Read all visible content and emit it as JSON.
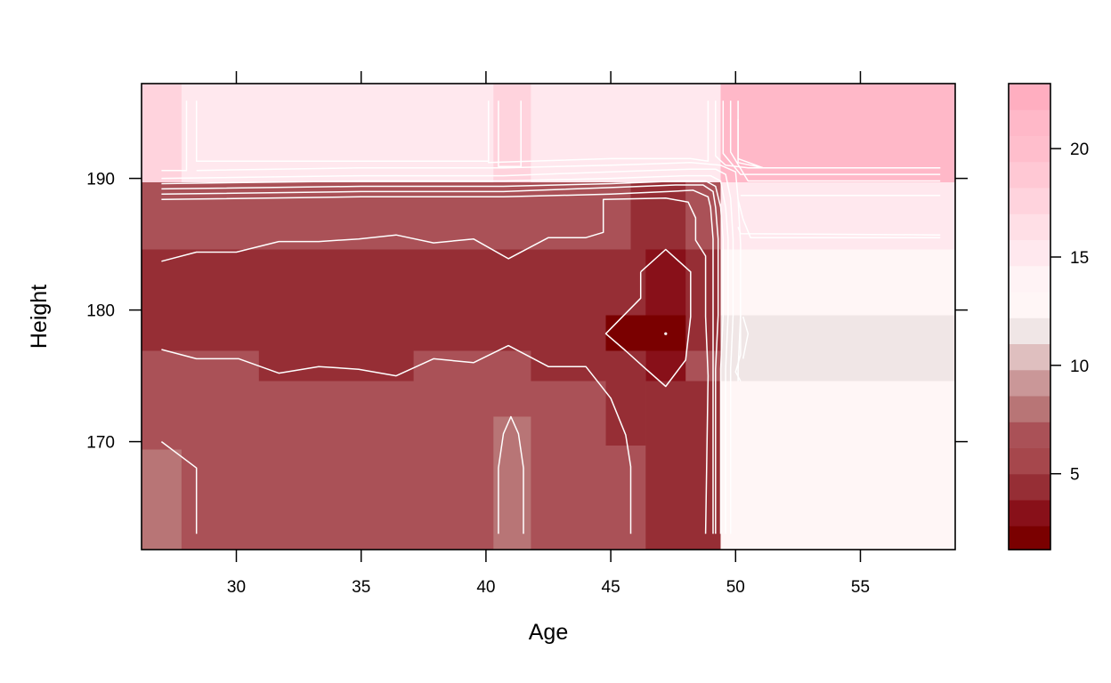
{
  "chart_data": {
    "type": "heatmap",
    "title": "",
    "xlabel": "Age",
    "ylabel": "Height",
    "xlim": [
      26.2,
      58.8
    ],
    "ylim": [
      161.8,
      197.2
    ],
    "x_ticks": [
      "30",
      "35",
      "40",
      "45",
      "50",
      "55"
    ],
    "x_tick_values": [
      30,
      35,
      40,
      45,
      50,
      55
    ],
    "y_ticks": [
      "170",
      "180",
      "190"
    ],
    "y_tick_values": [
      170,
      180,
      190
    ],
    "colorbar": {
      "range": [
        1.5,
        23
      ],
      "ticks": [
        "5",
        "10",
        "15",
        "20"
      ],
      "tick_values": [
        5,
        10,
        15,
        20
      ],
      "levels": [
        {
          "from": 1.5,
          "to": 2.6,
          "color": "#7A0000"
        },
        {
          "from": 2.6,
          "to": 3.8,
          "color": "#881019"
        },
        {
          "from": 3.8,
          "to": 5.0,
          "color": "#962E35"
        },
        {
          "from": 5.0,
          "to": 6.2,
          "color": "#A6474C"
        },
        {
          "from": 6.2,
          "to": 7.4,
          "color": "#AA5157"
        },
        {
          "from": 7.4,
          "to": 8.6,
          "color": "#B87576"
        },
        {
          "from": 8.6,
          "to": 9.8,
          "color": "#CA9798"
        },
        {
          "from": 9.8,
          "to": 11.0,
          "color": "#DFBFBF"
        },
        {
          "from": 11.0,
          "to": 12.2,
          "color": "#F0E6E6"
        },
        {
          "from": 12.2,
          "to": 13.4,
          "color": "#FFF6F6"
        },
        {
          "from": 13.4,
          "to": 14.6,
          "color": "#FFF3F5"
        },
        {
          "from": 14.6,
          "to": 15.8,
          "color": "#FFE8EE"
        },
        {
          "from": 15.8,
          "to": 17.0,
          "color": "#FFDFE6"
        },
        {
          "from": 17.0,
          "to": 18.2,
          "color": "#FFD3DD"
        },
        {
          "from": 18.2,
          "to": 19.4,
          "color": "#FFC8D4"
        },
        {
          "from": 19.4,
          "to": 20.6,
          "color": "#FFBECC"
        },
        {
          "from": 20.6,
          "to": 21.8,
          "color": "#FFB8C8"
        },
        {
          "from": 21.8,
          "to": 23.0,
          "color": "#FFAEC0"
        }
      ]
    },
    "cells": [
      {
        "x": [
          26.2,
          58.8
        ],
        "y": [
          161.8,
          197.2
        ],
        "value": 6.5
      },
      {
        "x": [
          26.2,
          58.8
        ],
        "y": [
          189.7,
          197.2
        ],
        "value": 15.8
      },
      {
        "x": [
          26.2,
          27.8
        ],
        "y": [
          189.7,
          197.2
        ],
        "value": 17.3
      },
      {
        "x": [
          40.3,
          41.8
        ],
        "y": [
          189.7,
          197.2
        ],
        "value": 17.3
      },
      {
        "x": [
          49.4,
          58.8
        ],
        "y": [
          189.7,
          197.2
        ],
        "value": 21.8
      },
      {
        "x": [
          26.2,
          58.8
        ],
        "y": [
          184.6,
          189.7
        ],
        "value": 6.5
      },
      {
        "x": [
          45.8,
          48.0
        ],
        "y": [
          184.6,
          189.7
        ],
        "value": 4.8
      },
      {
        "x": [
          48.0,
          49.4
        ],
        "y": [
          184.6,
          189.7
        ],
        "value": 6.5
      },
      {
        "x": [
          49.4,
          58.8
        ],
        "y": [
          184.6,
          189.7
        ],
        "value": 15.8
      },
      {
        "x": [
          26.2,
          49.4
        ],
        "y": [
          176.9,
          184.6
        ],
        "value": 4.8
      },
      {
        "x": [
          46.4,
          48.0
        ],
        "y": [
          174.6,
          184.6
        ],
        "value": 3.5
      },
      {
        "x": [
          44.8,
          48.0
        ],
        "y": [
          176.9,
          179.6
        ],
        "value": 2.4
      },
      {
        "x": [
          49.4,
          58.8
        ],
        "y": [
          179.6,
          184.6
        ],
        "value": 12.6
      },
      {
        "x": [
          49.4,
          58.8
        ],
        "y": [
          174.6,
          179.6
        ],
        "value": 11.4
      },
      {
        "x": [
          26.2,
          44.8
        ],
        "y": [
          161.8,
          176.9
        ],
        "value": 6.5
      },
      {
        "x": [
          30.9,
          37.1
        ],
        "y": [
          174.6,
          176.9
        ],
        "value": 4.8
      },
      {
        "x": [
          41.8,
          44.8
        ],
        "y": [
          174.6,
          176.9
        ],
        "value": 4.8
      },
      {
        "x": [
          44.8,
          46.4
        ],
        "y": [
          174.6,
          176.9
        ],
        "value": 4.8
      },
      {
        "x": [
          44.8,
          46.4
        ],
        "y": [
          169.7,
          174.6
        ],
        "value": 4.8
      },
      {
        "x": [
          44.8,
          46.4
        ],
        "y": [
          161.8,
          169.7
        ],
        "value": 6.5
      },
      {
        "x": [
          46.4,
          49.4
        ],
        "y": [
          161.8,
          174.6
        ],
        "value": 4.8
      },
      {
        "x": [
          49.4,
          58.8
        ],
        "y": [
          161.8,
          174.6
        ],
        "value": 12.6
      },
      {
        "x": [
          26.2,
          27.8
        ],
        "y": [
          161.8,
          169.4
        ],
        "value": 7.9
      },
      {
        "x": [
          40.3,
          41.8
        ],
        "y": [
          161.8,
          171.9
        ],
        "value": 7.9
      }
    ],
    "contours": [
      {
        "points": [
          [
            27.0,
            183.7
          ],
          [
            28.4,
            184.4
          ],
          [
            30.0,
            184.4
          ],
          [
            31.7,
            185.2
          ],
          [
            33.3,
            185.2
          ],
          [
            34.9,
            185.4
          ],
          [
            36.4,
            185.7
          ],
          [
            37.9,
            185.1
          ],
          [
            39.5,
            185.4
          ],
          [
            40.9,
            183.9
          ],
          [
            42.5,
            185.5
          ],
          [
            44.0,
            185.5
          ],
          [
            44.7,
            185.9
          ],
          [
            44.7,
            188.4
          ],
          [
            47.2,
            188.5
          ],
          [
            48.1,
            188.2
          ],
          [
            48.4,
            187.0
          ],
          [
            48.4,
            185.3
          ],
          [
            48.8,
            184.1
          ],
          [
            48.8,
            179.5
          ],
          [
            48.9,
            175.0
          ],
          [
            48.8,
            163.0
          ]
        ]
      },
      {
        "points": [
          [
            27.0,
            177.0
          ],
          [
            28.4,
            176.3
          ],
          [
            30.1,
            176.3
          ],
          [
            31.7,
            175.2
          ],
          [
            33.3,
            175.7
          ],
          [
            34.9,
            175.5
          ],
          [
            36.4,
            175.0
          ],
          [
            37.9,
            176.3
          ],
          [
            39.5,
            176.0
          ],
          [
            40.9,
            177.3
          ],
          [
            42.5,
            175.7
          ],
          [
            44.0,
            175.7
          ],
          [
            45.0,
            173.3
          ],
          [
            45.6,
            170.5
          ],
          [
            45.8,
            168.1
          ],
          [
            45.8,
            163.0
          ]
        ]
      },
      {
        "points": [
          [
            27.0,
            170.0
          ],
          [
            28.4,
            168.0
          ],
          [
            28.4,
            163.0
          ]
        ]
      },
      {
        "points": [
          [
            40.5,
            163.0
          ],
          [
            40.5,
            168.0
          ],
          [
            40.7,
            170.6
          ],
          [
            41.0,
            171.9
          ],
          [
            41.3,
            170.6
          ],
          [
            41.5,
            168.0
          ],
          [
            41.5,
            163.0
          ]
        ]
      },
      {
        "points": [
          [
            46.2,
            182.9
          ],
          [
            47.2,
            184.6
          ],
          [
            48.2,
            182.9
          ],
          [
            48.2,
            179.5
          ],
          [
            48.0,
            176.2
          ],
          [
            47.2,
            174.2
          ],
          [
            46.3,
            175.7
          ],
          [
            45.6,
            176.9
          ],
          [
            44.8,
            178.2
          ],
          [
            46.2,
            180.9
          ],
          [
            46.2,
            182.9
          ]
        ]
      },
      {
        "points": [
          [
            27.0,
            190.6
          ],
          [
            28.0,
            190.6
          ],
          [
            28.0,
            195.9
          ]
        ]
      },
      {
        "points": [
          [
            27.0,
            188.4
          ],
          [
            35.0,
            188.6
          ],
          [
            40.7,
            188.6
          ],
          [
            45.0,
            188.8
          ],
          [
            47.3,
            189.0
          ],
          [
            48.3,
            189.1
          ],
          [
            48.9,
            188.6
          ],
          [
            49.0,
            187.8
          ],
          [
            49.1,
            185.4
          ],
          [
            49.1,
            179.6
          ],
          [
            49.1,
            175.5
          ],
          [
            49.1,
            163.0
          ]
        ]
      },
      {
        "points": [
          [
            27.0,
            188.8
          ],
          [
            35.0,
            189.0
          ],
          [
            40.7,
            189.0
          ],
          [
            45.0,
            189.3
          ],
          [
            47.6,
            189.5
          ],
          [
            48.7,
            189.5
          ],
          [
            49.1,
            189.0
          ],
          [
            49.2,
            187.8
          ],
          [
            49.3,
            185.4
          ],
          [
            49.3,
            179.6
          ],
          [
            49.2,
            175.5
          ],
          [
            49.2,
            163.0
          ]
        ]
      },
      {
        "points": [
          [
            27.0,
            189.2
          ],
          [
            35.0,
            189.4
          ],
          [
            40.7,
            189.4
          ],
          [
            45.0,
            189.6
          ],
          [
            47.8,
            189.8
          ],
          [
            48.8,
            189.8
          ],
          [
            49.2,
            189.4
          ],
          [
            49.4,
            187.8
          ],
          [
            49.5,
            185.4
          ],
          [
            49.5,
            179.6
          ],
          [
            49.4,
            175.5
          ],
          [
            49.4,
            163.0
          ]
        ]
      },
      {
        "points": [
          [
            27.0,
            189.6
          ],
          [
            35.0,
            189.8
          ],
          [
            40.7,
            189.8
          ],
          [
            45.0,
            190.0
          ],
          [
            48.0,
            190.2
          ],
          [
            49.0,
            190.2
          ],
          [
            49.4,
            189.8
          ],
          [
            49.6,
            187.8
          ],
          [
            49.7,
            185.4
          ],
          [
            49.7,
            179.6
          ],
          [
            49.6,
            175.5
          ],
          [
            49.6,
            163.0
          ]
        ]
      },
      {
        "points": [
          [
            27.0,
            190.0
          ],
          [
            35.0,
            190.2
          ],
          [
            40.7,
            190.2
          ],
          [
            45.0,
            190.5
          ],
          [
            48.2,
            190.7
          ],
          [
            49.2,
            190.7
          ],
          [
            49.6,
            190.3
          ],
          [
            49.8,
            188.5
          ],
          [
            49.9,
            185.4
          ],
          [
            49.9,
            179.6
          ],
          [
            49.8,
            175.5
          ],
          [
            49.8,
            163.0
          ]
        ]
      },
      {
        "points": [
          [
            28.4,
            190.6
          ],
          [
            35.0,
            190.8
          ],
          [
            40.7,
            190.8
          ],
          [
            45.0,
            191.0
          ],
          [
            48.2,
            191.2
          ],
          [
            49.4,
            191.0
          ],
          [
            50.0,
            190.5
          ],
          [
            50.1,
            188.4
          ],
          [
            50.2,
            185.0
          ],
          [
            50.2,
            179.6
          ],
          [
            50.1,
            175.5
          ],
          [
            50.1,
            174.6
          ]
        ]
      },
      {
        "points": [
          [
            28.4,
            195.9
          ],
          [
            28.4,
            191.3
          ],
          [
            35.0,
            191.3
          ],
          [
            40.1,
            191.3
          ]
        ]
      },
      {
        "points": [
          [
            40.1,
            195.9
          ],
          [
            40.1,
            191.2
          ],
          [
            45.0,
            191.5
          ],
          [
            48.2,
            191.5
          ],
          [
            48.9,
            191.3
          ],
          [
            48.9,
            195.9
          ]
        ]
      },
      {
        "points": [
          [
            40.5,
            195.9
          ],
          [
            40.5,
            190.9
          ],
          [
            41.4,
            190.9
          ],
          [
            41.4,
            195.9
          ]
        ]
      },
      {
        "points": [
          [
            49.2,
            195.9
          ],
          [
            49.2,
            191.7
          ],
          [
            49.6,
            191.0
          ],
          [
            50.5,
            190.8
          ],
          [
            58.2,
            190.8
          ]
        ]
      },
      {
        "points": [
          [
            49.5,
            195.9
          ],
          [
            49.5,
            191.9
          ],
          [
            50.2,
            190.3
          ],
          [
            58.2,
            190.3
          ]
        ]
      },
      {
        "points": [
          [
            49.8,
            195.9
          ],
          [
            49.8,
            192.0
          ],
          [
            50.5,
            189.8
          ],
          [
            58.2,
            189.8
          ]
        ]
      },
      {
        "points": [
          [
            50.1,
            195.9
          ],
          [
            50.1,
            191.5
          ],
          [
            51.1,
            190.8
          ],
          [
            58.2,
            190.8
          ]
        ]
      },
      {
        "points": [
          [
            50.1,
            194.5
          ],
          [
            50.1,
            191.2
          ],
          [
            51.1,
            190.8
          ]
        ]
      },
      {
        "points": [
          [
            50.1,
            188.4
          ],
          [
            50.3,
            186.9
          ],
          [
            50.6,
            185.5
          ],
          [
            58.2,
            185.5
          ]
        ]
      },
      {
        "points": [
          [
            50.2,
            181.3
          ],
          [
            50.2,
            176.6
          ],
          [
            50.0,
            175.3
          ],
          [
            50.2,
            174.6
          ]
        ]
      },
      {
        "points": [
          [
            50.1,
            186.3
          ],
          [
            50.2,
            185.8
          ],
          [
            58.2,
            185.7
          ]
        ]
      },
      {
        "points": [
          [
            50.2,
            188.7
          ],
          [
            58.2,
            188.7
          ]
        ]
      },
      {
        "points": [
          [
            50.3,
            179.5
          ],
          [
            50.5,
            178.2
          ],
          [
            50.3,
            176.3
          ]
        ]
      }
    ],
    "peak_point": {
      "x": 47.2,
      "y": 178.2
    }
  }
}
